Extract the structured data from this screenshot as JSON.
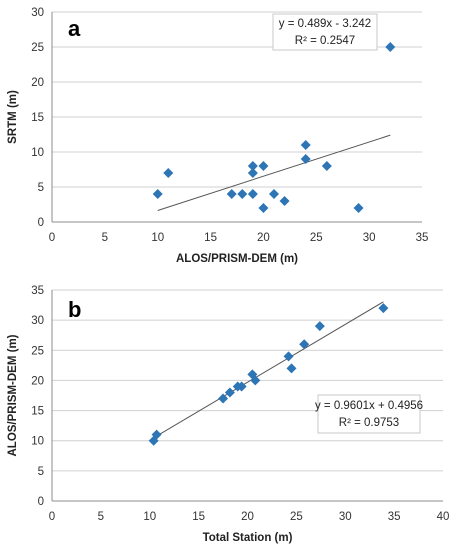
{
  "chart_data": [
    {
      "type": "scatter",
      "panel_label": "a",
      "xlabel": "ALOS/PRISM-DEM (m)",
      "ylabel": "SRTM (m)",
      "xlim": [
        0,
        35
      ],
      "ylim": [
        0,
        30
      ],
      "xticks": [
        0,
        5,
        10,
        15,
        20,
        25,
        30,
        35
      ],
      "yticks": [
        0,
        5,
        10,
        15,
        20,
        25,
        30
      ],
      "grid": "horizontal",
      "marker_color": "#2e75b6",
      "trendline_color": "#555555",
      "points": [
        {
          "x": 10,
          "y": 4
        },
        {
          "x": 11,
          "y": 7
        },
        {
          "x": 17,
          "y": 4
        },
        {
          "x": 18,
          "y": 4
        },
        {
          "x": 19,
          "y": 8
        },
        {
          "x": 19,
          "y": 7
        },
        {
          "x": 19,
          "y": 4
        },
        {
          "x": 20,
          "y": 8
        },
        {
          "x": 20,
          "y": 2
        },
        {
          "x": 21,
          "y": 4
        },
        {
          "x": 22,
          "y": 3
        },
        {
          "x": 24,
          "y": 11
        },
        {
          "x": 24,
          "y": 9
        },
        {
          "x": 26,
          "y": 8
        },
        {
          "x": 29,
          "y": 2
        },
        {
          "x": 32,
          "y": 25
        }
      ],
      "trendline": {
        "slope": 0.489,
        "intercept": -3.242,
        "x_range": [
          10,
          32
        ]
      },
      "equation_text": "y = 0.489x - 3.242",
      "r2_text": "R² = 0.2547"
    },
    {
      "type": "scatter",
      "panel_label": "b",
      "xlabel": "Total Station (m)",
      "ylabel": "ALOS/PRISM-DEM (m)",
      "xlim": [
        0,
        40
      ],
      "ylim": [
        0,
        35
      ],
      "xticks": [
        0,
        5,
        10,
        15,
        20,
        25,
        30,
        35,
        40
      ],
      "yticks": [
        0,
        5,
        10,
        15,
        20,
        25,
        30,
        35
      ],
      "grid": "horizontal",
      "marker_color": "#2e75b6",
      "trendline_color": "#555555",
      "points": [
        {
          "x": 10.4,
          "y": 10
        },
        {
          "x": 10.7,
          "y": 11
        },
        {
          "x": 17.5,
          "y": 17
        },
        {
          "x": 18.2,
          "y": 18
        },
        {
          "x": 19.0,
          "y": 19
        },
        {
          "x": 19.4,
          "y": 19
        },
        {
          "x": 20.5,
          "y": 21
        },
        {
          "x": 20.8,
          "y": 20
        },
        {
          "x": 24.2,
          "y": 24
        },
        {
          "x": 24.5,
          "y": 22
        },
        {
          "x": 25.8,
          "y": 26
        },
        {
          "x": 27.4,
          "y": 29
        },
        {
          "x": 33.9,
          "y": 32
        }
      ],
      "trendline": {
        "slope": 0.9601,
        "intercept": 0.4956,
        "x_range": [
          10.4,
          33.9
        ]
      },
      "equation_text": "y = 0.9601x + 0.4956",
      "r2_text": "R² = 0.9753"
    }
  ]
}
